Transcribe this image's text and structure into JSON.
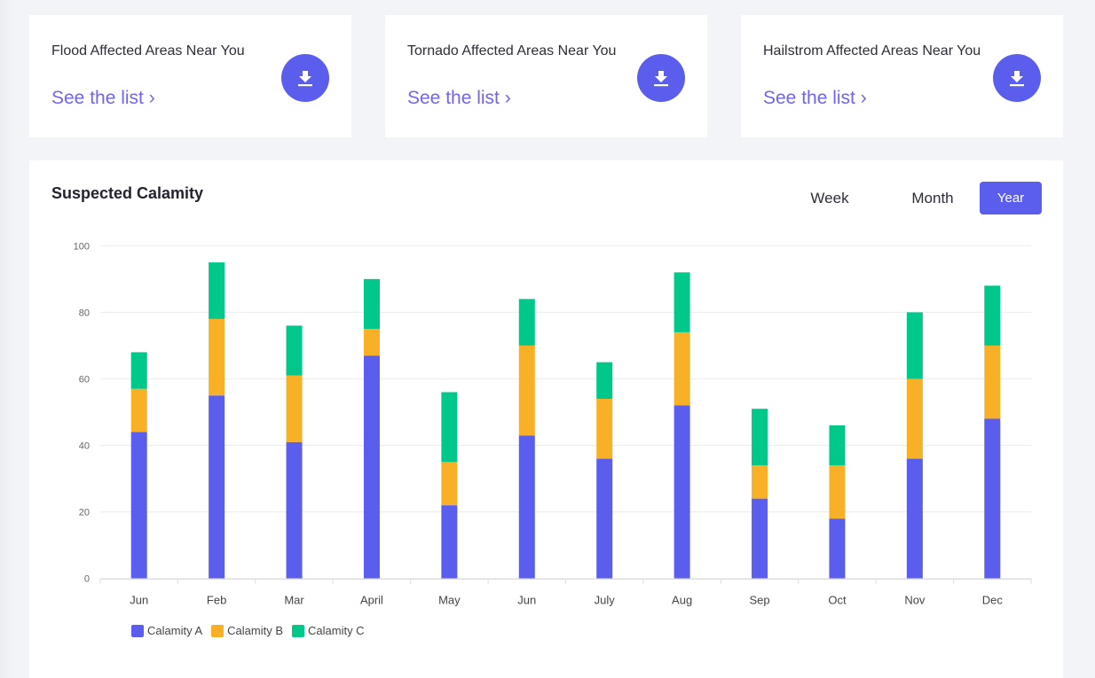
{
  "cards": [
    {
      "title": "Flood Affected Areas Near You",
      "link": "See the list ›",
      "icon": "download-icon"
    },
    {
      "title": "Tornado Affected Areas Near You",
      "link": "See the list ›",
      "icon": "download-icon"
    },
    {
      "title": "Hailstrom Affected Areas Near You",
      "link": "See the list ›",
      "icon": "download-icon"
    }
  ],
  "colors": {
    "accent": "#5b5eec",
    "link": "#6f65f0",
    "seriesA": "#5b5eec",
    "seriesB": "#f8b126",
    "seriesC": "#00c88b"
  },
  "range": {
    "week": "Week",
    "month": "Month",
    "year": "Year",
    "selected": "Year"
  },
  "chart_data": {
    "type": "bar",
    "stacked": true,
    "title": "Suspected Calamity",
    "xlabel": "",
    "ylabel": "",
    "ylim": [
      0,
      100
    ],
    "yticks": [
      0,
      20,
      40,
      60,
      80,
      100
    ],
    "grid": true,
    "legend": "bottom-left",
    "categories": [
      "Jun",
      "Feb",
      "Mar",
      "April",
      "May",
      "Jun",
      "July",
      "Aug",
      "Sep",
      "Oct",
      "Nov",
      "Dec"
    ],
    "series": [
      {
        "name": "Calamity A",
        "color": "#5b5eec",
        "values": [
          44,
          55,
          41,
          67,
          22,
          43,
          36,
          52,
          24,
          18,
          36,
          48
        ]
      },
      {
        "name": "Calamity B",
        "color": "#f8b126",
        "values": [
          13,
          23,
          20,
          8,
          13,
          27,
          18,
          22,
          10,
          16,
          24,
          22
        ]
      },
      {
        "name": "Calamity C",
        "color": "#00c88b",
        "values": [
          11,
          17,
          15,
          15,
          21,
          14,
          11,
          18,
          17,
          12,
          20,
          18
        ]
      }
    ]
  }
}
